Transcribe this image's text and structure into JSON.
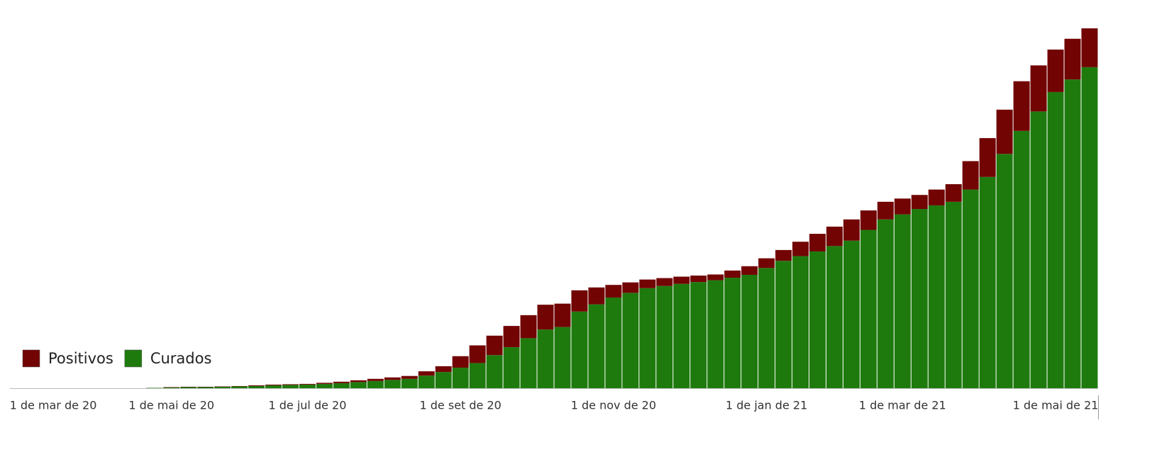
{
  "chart_data": {
    "type": "stacked-bar",
    "categories": [
      "1 de mar de 20",
      null,
      null,
      null,
      null,
      null,
      null,
      null,
      null,
      "1 de mai de 20",
      null,
      null,
      null,
      null,
      null,
      null,
      null,
      "1 de jul de 20",
      null,
      null,
      null,
      null,
      null,
      null,
      null,
      null,
      "1 de set de 20",
      null,
      null,
      null,
      null,
      null,
      null,
      null,
      null,
      "1 de nov de 20",
      null,
      null,
      null,
      null,
      null,
      null,
      null,
      null,
      "1 de jan de 21",
      null,
      null,
      null,
      null,
      null,
      null,
      null,
      "1 de mar de 21",
      null,
      null,
      null,
      null,
      null,
      null,
      null,
      null,
      "1 de mai de 21",
      null,
      null
    ],
    "series": [
      {
        "name": "Positivos",
        "color": "#720404",
        "values": [
          0,
          0,
          0,
          0,
          0,
          0,
          0,
          0,
          0,
          0.1,
          0.1,
          0.1,
          0.1,
          0.1,
          0.2,
          0.2,
          0.2,
          0.2,
          0.3,
          0.4,
          0.5,
          0.6,
          0.7,
          0.8,
          1.2,
          1.6,
          3.2,
          4.9,
          5.4,
          5.9,
          6.4,
          6.9,
          6.5,
          5.9,
          4.7,
          3.5,
          2.9,
          2.4,
          2.2,
          2.0,
          1.8,
          1.6,
          2.0,
          2.4,
          2.7,
          3.0,
          4.0,
          4.9,
          5.4,
          5.9,
          5.4,
          4.9,
          4.4,
          3.9,
          4.4,
          4.9,
          7.9,
          10.8,
          12.3,
          13.8,
          12.8,
          11.8,
          11.3,
          10.8
        ]
      },
      {
        "name": "Curados",
        "color": "#1f7a0e",
        "values": [
          0,
          0,
          0,
          0,
          0,
          0,
          0,
          0,
          0.1,
          0.2,
          0.3,
          0.3,
          0.4,
          0.5,
          0.6,
          0.8,
          0.9,
          1.0,
          1.2,
          1.4,
          1.7,
          2.0,
          2.3,
          2.6,
          3.5,
          4.5,
          5.7,
          7.0,
          9.2,
          11.4,
          13.9,
          16.3,
          17.0,
          21.3,
          23.3,
          25.2,
          26.5,
          27.8,
          28.4,
          29.0,
          29.5,
          30.0,
          30.7,
          31.5,
          33.4,
          35.4,
          36.7,
          38.0,
          39.5,
          41.0,
          44.0,
          46.9,
          48.3,
          49.8,
          50.8,
          51.8,
          55.2,
          58.7,
          65.1,
          71.5,
          76.9,
          82.3,
          85.8,
          89.2
        ]
      }
    ],
    "ylim": [
      0,
      100
    ]
  }
}
